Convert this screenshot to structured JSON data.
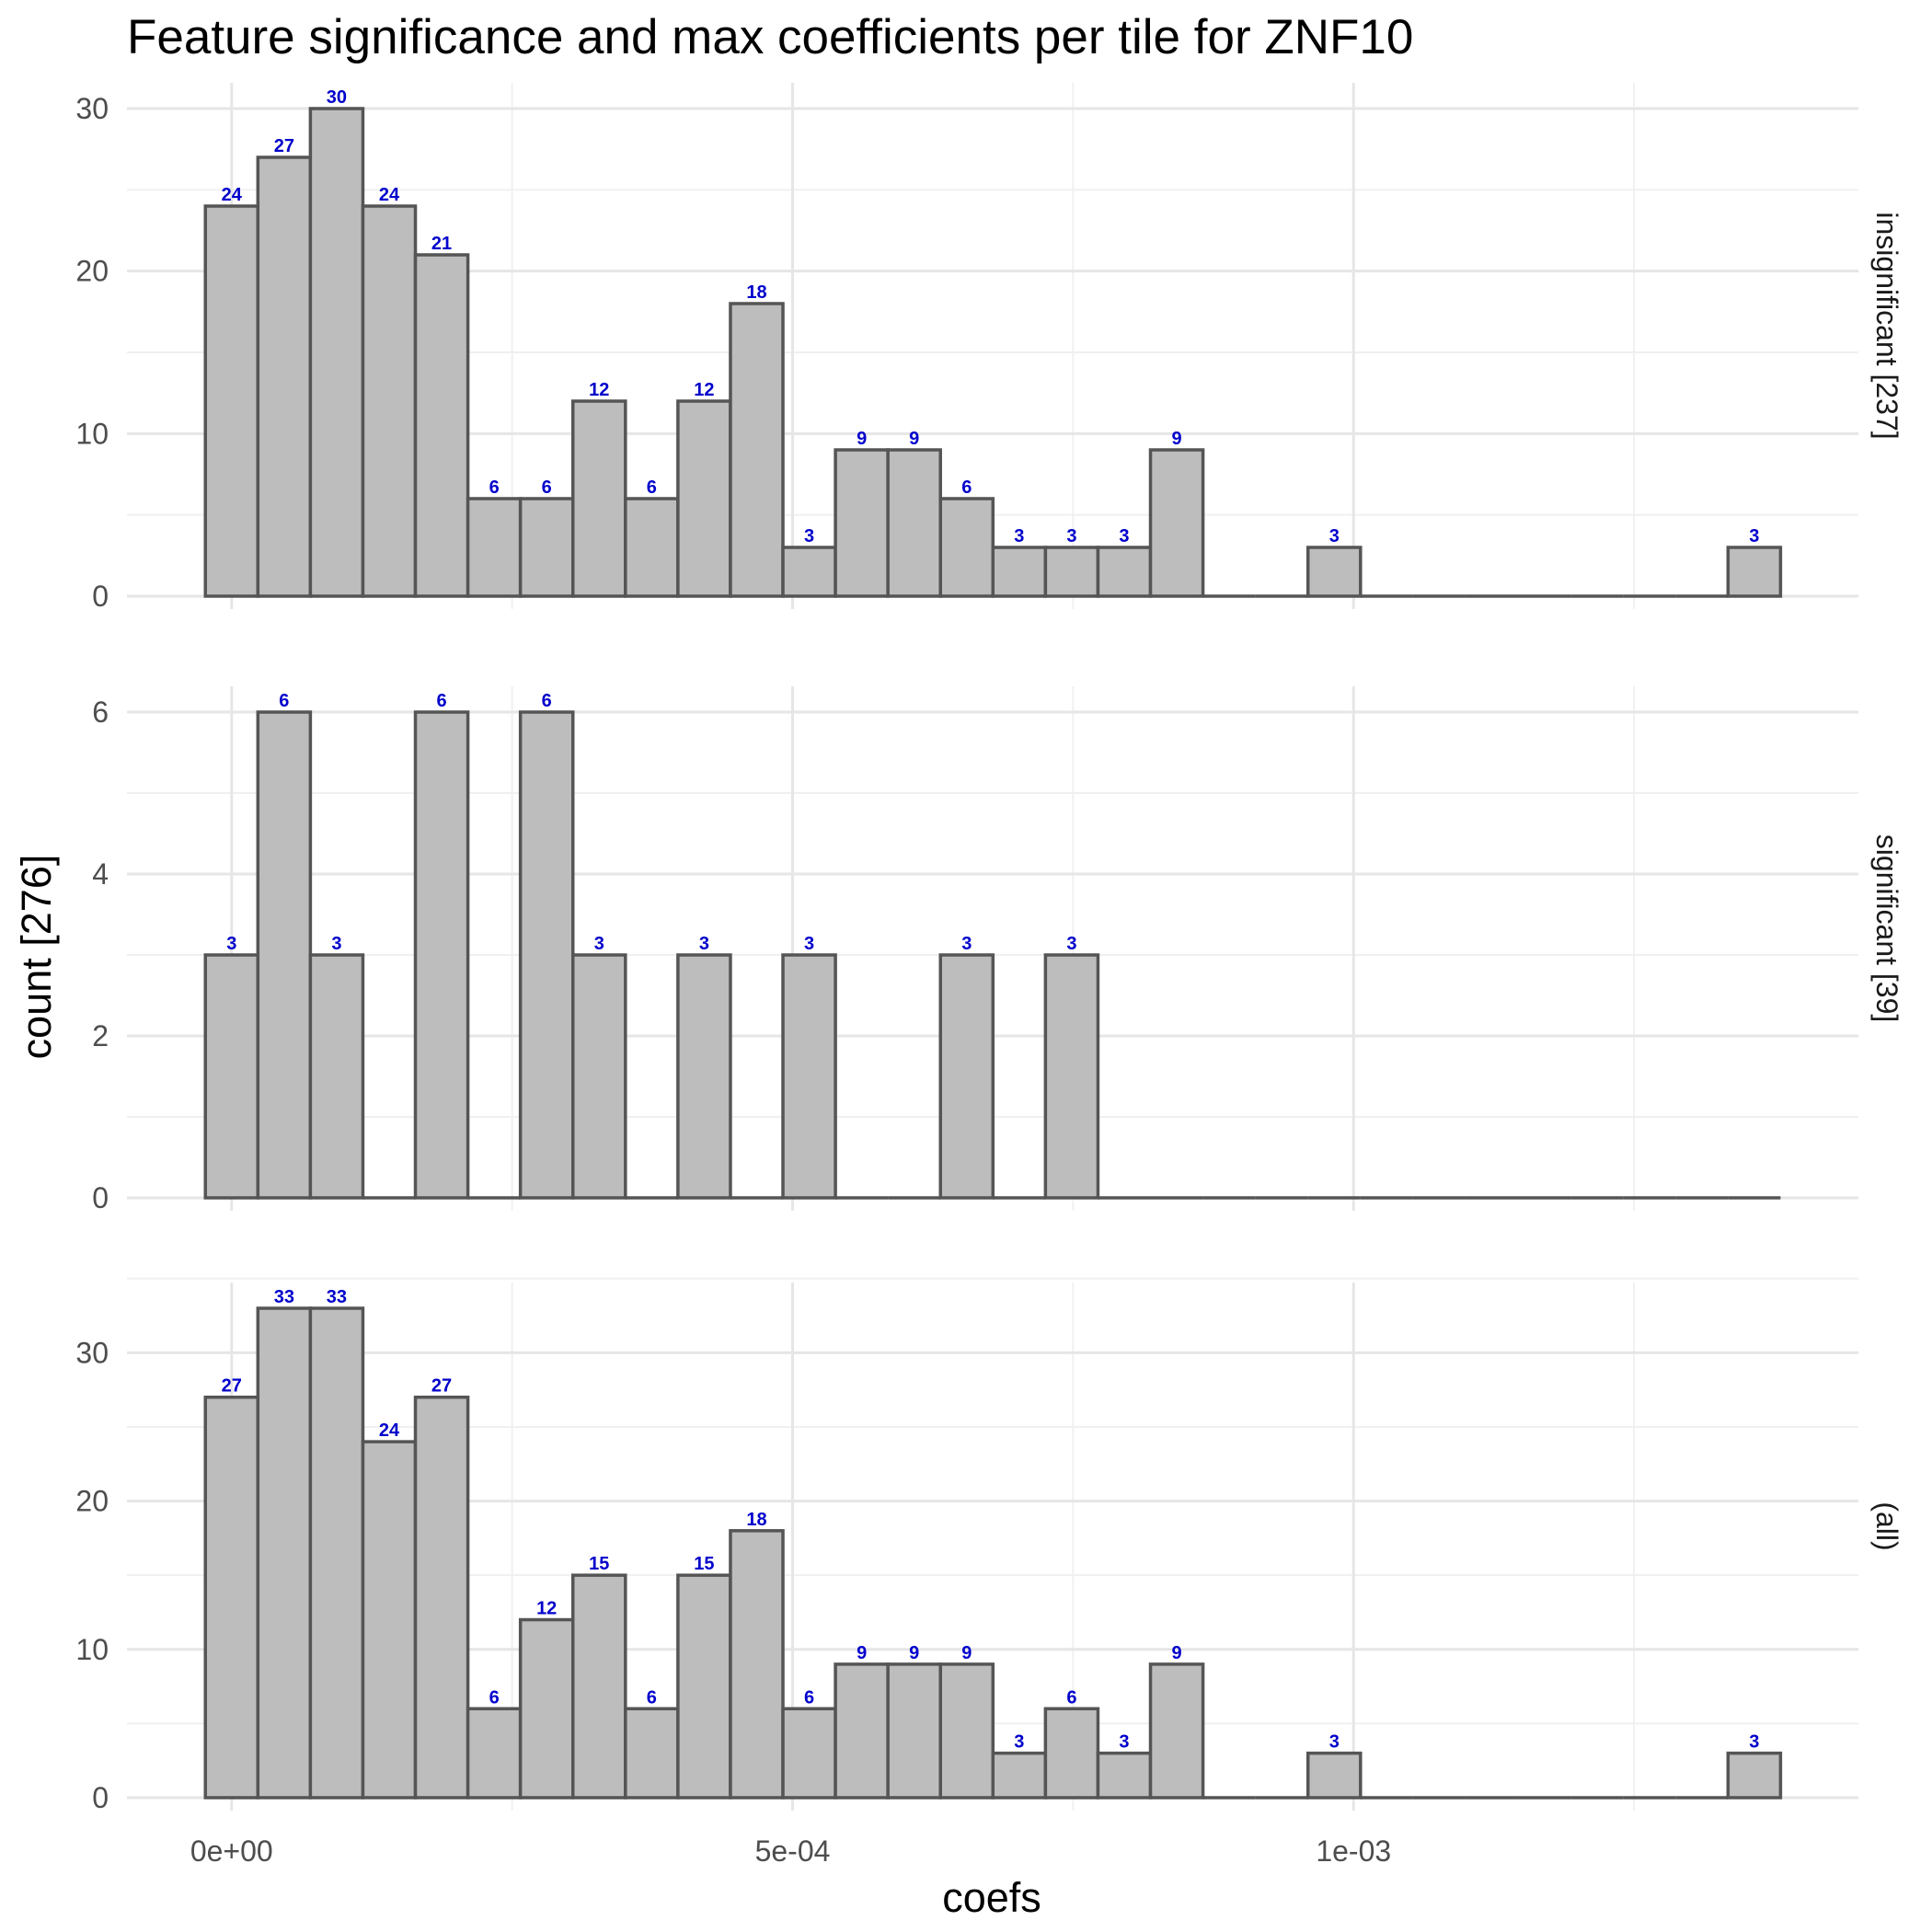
{
  "chart_data": {
    "type": "bar",
    "title": "Feature significance and max coefficients per tile for ZNF10",
    "xlabel": "coefs",
    "ylabel": "count [276]",
    "x_ticks": [
      "0e+00",
      "5e-04",
      "1e-03"
    ],
    "x_tick_values": [
      0,
      0.0005,
      0.001
    ],
    "xlim": [
      -9.33e-05,
      0.00145
    ],
    "bin_width": 4.68e-05,
    "bin_centers": [
      0.0,
      4.68e-05,
      9.36e-05,
      0.0001404,
      0.0001872,
      0.000234,
      0.0002808,
      0.0003276,
      0.0003744,
      0.0004212,
      0.000468,
      0.0005148,
      0.0005616,
      0.0006084,
      0.0006552,
      0.000702,
      0.0007488,
      0.0007956,
      0.0008424,
      0.0008892,
      0.000936,
      0.0009828,
      0.0010296,
      0.0010764,
      0.0011232,
      0.00117,
      0.0012168,
      0.0012636,
      0.0013104,
      0.0013572
    ],
    "grid": true,
    "label_color": "#0000cc",
    "bar_fill": "#bdbdbd",
    "bar_stroke": "#555555",
    "panels": [
      {
        "strip": "insignificant [237]",
        "y_ticks": [
          "0",
          "10",
          "20",
          "30"
        ],
        "y_tick_values": [
          0,
          10,
          20,
          30
        ],
        "ylim": [
          0,
          30
        ],
        "values": [
          24,
          27,
          30,
          24,
          21,
          6,
          6,
          12,
          6,
          12,
          18,
          3,
          9,
          9,
          6,
          3,
          3,
          3,
          9,
          0,
          0,
          3,
          0,
          0,
          0,
          0,
          0,
          0,
          0,
          3
        ],
        "labels": [
          "24",
          "27",
          "30",
          "24",
          "21",
          "6",
          "6",
          "12",
          "6",
          "12",
          "18",
          "3",
          "9",
          "9",
          "6",
          "3",
          "3",
          "3",
          "9",
          "",
          "",
          "3",
          "",
          "",
          "",
          "",
          "",
          "",
          "",
          "3"
        ]
      },
      {
        "strip": "significant [39]",
        "y_ticks": [
          "0",
          "2",
          "4",
          "6"
        ],
        "y_tick_values": [
          0,
          2,
          4,
          6
        ],
        "ylim": [
          0,
          6
        ],
        "values": [
          3,
          6,
          3,
          0,
          6,
          0,
          6,
          3,
          0,
          3,
          0,
          3,
          0,
          0,
          3,
          0,
          3,
          0,
          0,
          0,
          0,
          0,
          0,
          0,
          0,
          0,
          0,
          0,
          0,
          0
        ],
        "labels": [
          "3",
          "6",
          "3",
          "",
          "6",
          "",
          "6",
          "3",
          "",
          "3",
          "",
          "3",
          "",
          "",
          "3",
          "",
          "3",
          "",
          "",
          "",
          "",
          "",
          "",
          "",
          "",
          "",
          "",
          "",
          "",
          ""
        ]
      },
      {
        "strip": "(all)",
        "y_ticks": [
          "0",
          "10",
          "20",
          "30"
        ],
        "y_tick_values": [
          0,
          10,
          20,
          30
        ],
        "ylim": [
          0,
          33
        ],
        "values": [
          27,
          33,
          33,
          24,
          27,
          6,
          12,
          15,
          6,
          15,
          18,
          6,
          9,
          9,
          9,
          3,
          6,
          3,
          9,
          0,
          0,
          3,
          0,
          0,
          0,
          0,
          0,
          0,
          0,
          3
        ],
        "labels": [
          "27",
          "33",
          "33",
          "24",
          "27",
          "6",
          "12",
          "15",
          "6",
          "15",
          "18",
          "6",
          "9",
          "9",
          "9",
          "3",
          "6",
          "3",
          "9",
          "",
          "",
          "3",
          "",
          "",
          "",
          "",
          "",
          "",
          "",
          "3"
        ]
      }
    ]
  }
}
